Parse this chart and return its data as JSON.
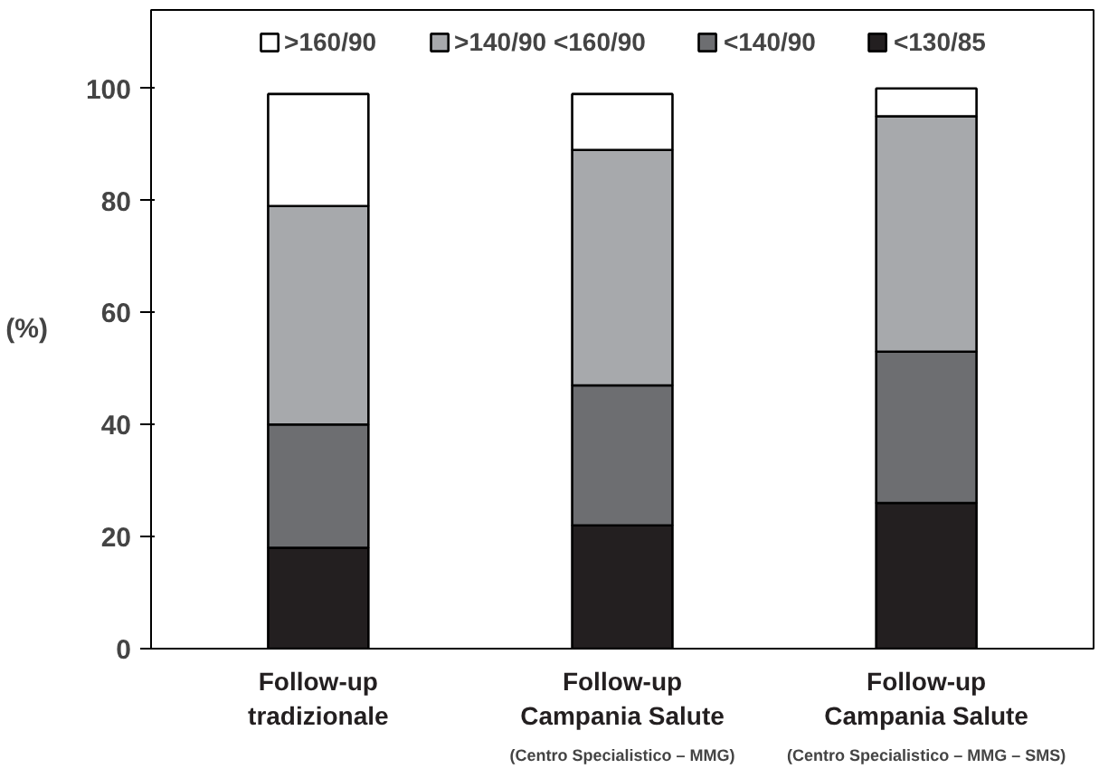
{
  "chart_data": {
    "type": "bar",
    "stacked": true,
    "ylabel": "(%)",
    "categories": [
      "Follow-up\ntradizionale",
      "Follow-up\nCampania Salute",
      "Follow-up\nCampania Salute"
    ],
    "series": [
      {
        "name": "<130/85",
        "color": "#231f20",
        "values": [
          18,
          22,
          26
        ]
      },
      {
        "name": "<140/90",
        "color": "#6d6e71",
        "values": [
          22,
          25,
          27
        ]
      },
      {
        "name": ">140/90 <160/90",
        "color": "#a7a9ac",
        "values": [
          39,
          42,
          42
        ]
      },
      {
        "name": ">160/90",
        "color": "#ffffff",
        "values": [
          20,
          10,
          5
        ]
      }
    ],
    "annotations": [
      "(Centro Specialistico – MMG)",
      "(Centro Specialistico – MMG – SMS)"
    ],
    "ylim": [
      0,
      114
    ],
    "yticks": [
      0,
      20,
      40,
      60,
      80,
      100
    ],
    "grid": false,
    "legend": "top"
  }
}
